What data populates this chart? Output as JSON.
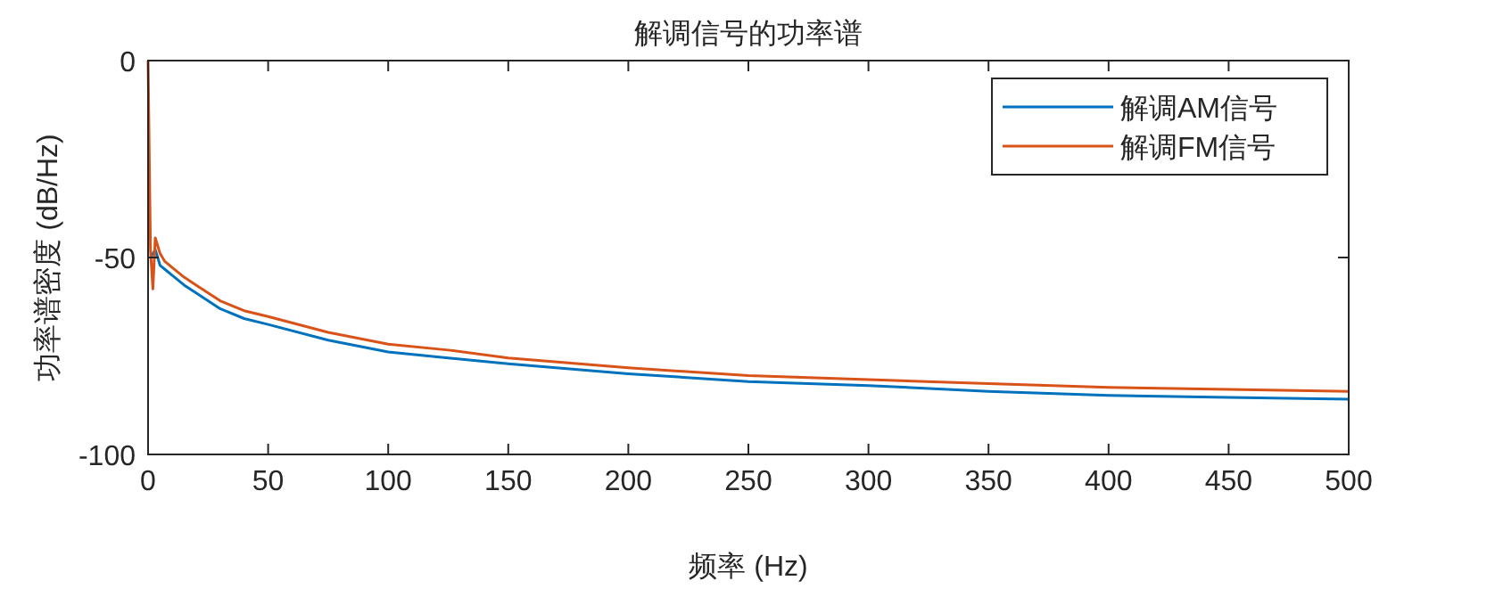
{
  "chart_data": {
    "type": "line",
    "title": "解调信号的功率谱",
    "xlabel": "频率 (Hz)",
    "ylabel": "功率谱密度 (dB/Hz)",
    "x": [
      0,
      1,
      2,
      3,
      4,
      5,
      7,
      10,
      15,
      20,
      30,
      40,
      50,
      75,
      100,
      125,
      150,
      200,
      250,
      300,
      350,
      400,
      450,
      500
    ],
    "series": [
      {
        "name": "解调AM信号",
        "color": "#0072bd",
        "values": [
          null,
          -50,
          null,
          -48,
          -50,
          -52,
          -53,
          -54.5,
          -57,
          -59,
          -63,
          -65.5,
          -67,
          -71,
          -74,
          -75.5,
          -77,
          -79.5,
          -81.5,
          -82.5,
          -84,
          -85,
          -85.5,
          -86
        ]
      },
      {
        "name": "解调FM信号",
        "color": "#d95319",
        "values": [
          0,
          -48,
          -58,
          -45,
          -47,
          -49,
          -51,
          -52.5,
          -55,
          -57,
          -61,
          -63.5,
          -65,
          -69,
          -72,
          -73.5,
          -75.5,
          -78,
          -80,
          -81,
          -82,
          -83,
          -83.5,
          -84
        ]
      }
    ],
    "xlim": [
      0,
      500
    ],
    "ylim": [
      -100,
      0
    ],
    "xticks": [
      0,
      50,
      100,
      150,
      200,
      250,
      300,
      350,
      400,
      450,
      500
    ],
    "yticks": [
      -100,
      -50,
      0
    ],
    "grid": false,
    "legend": "top right"
  }
}
